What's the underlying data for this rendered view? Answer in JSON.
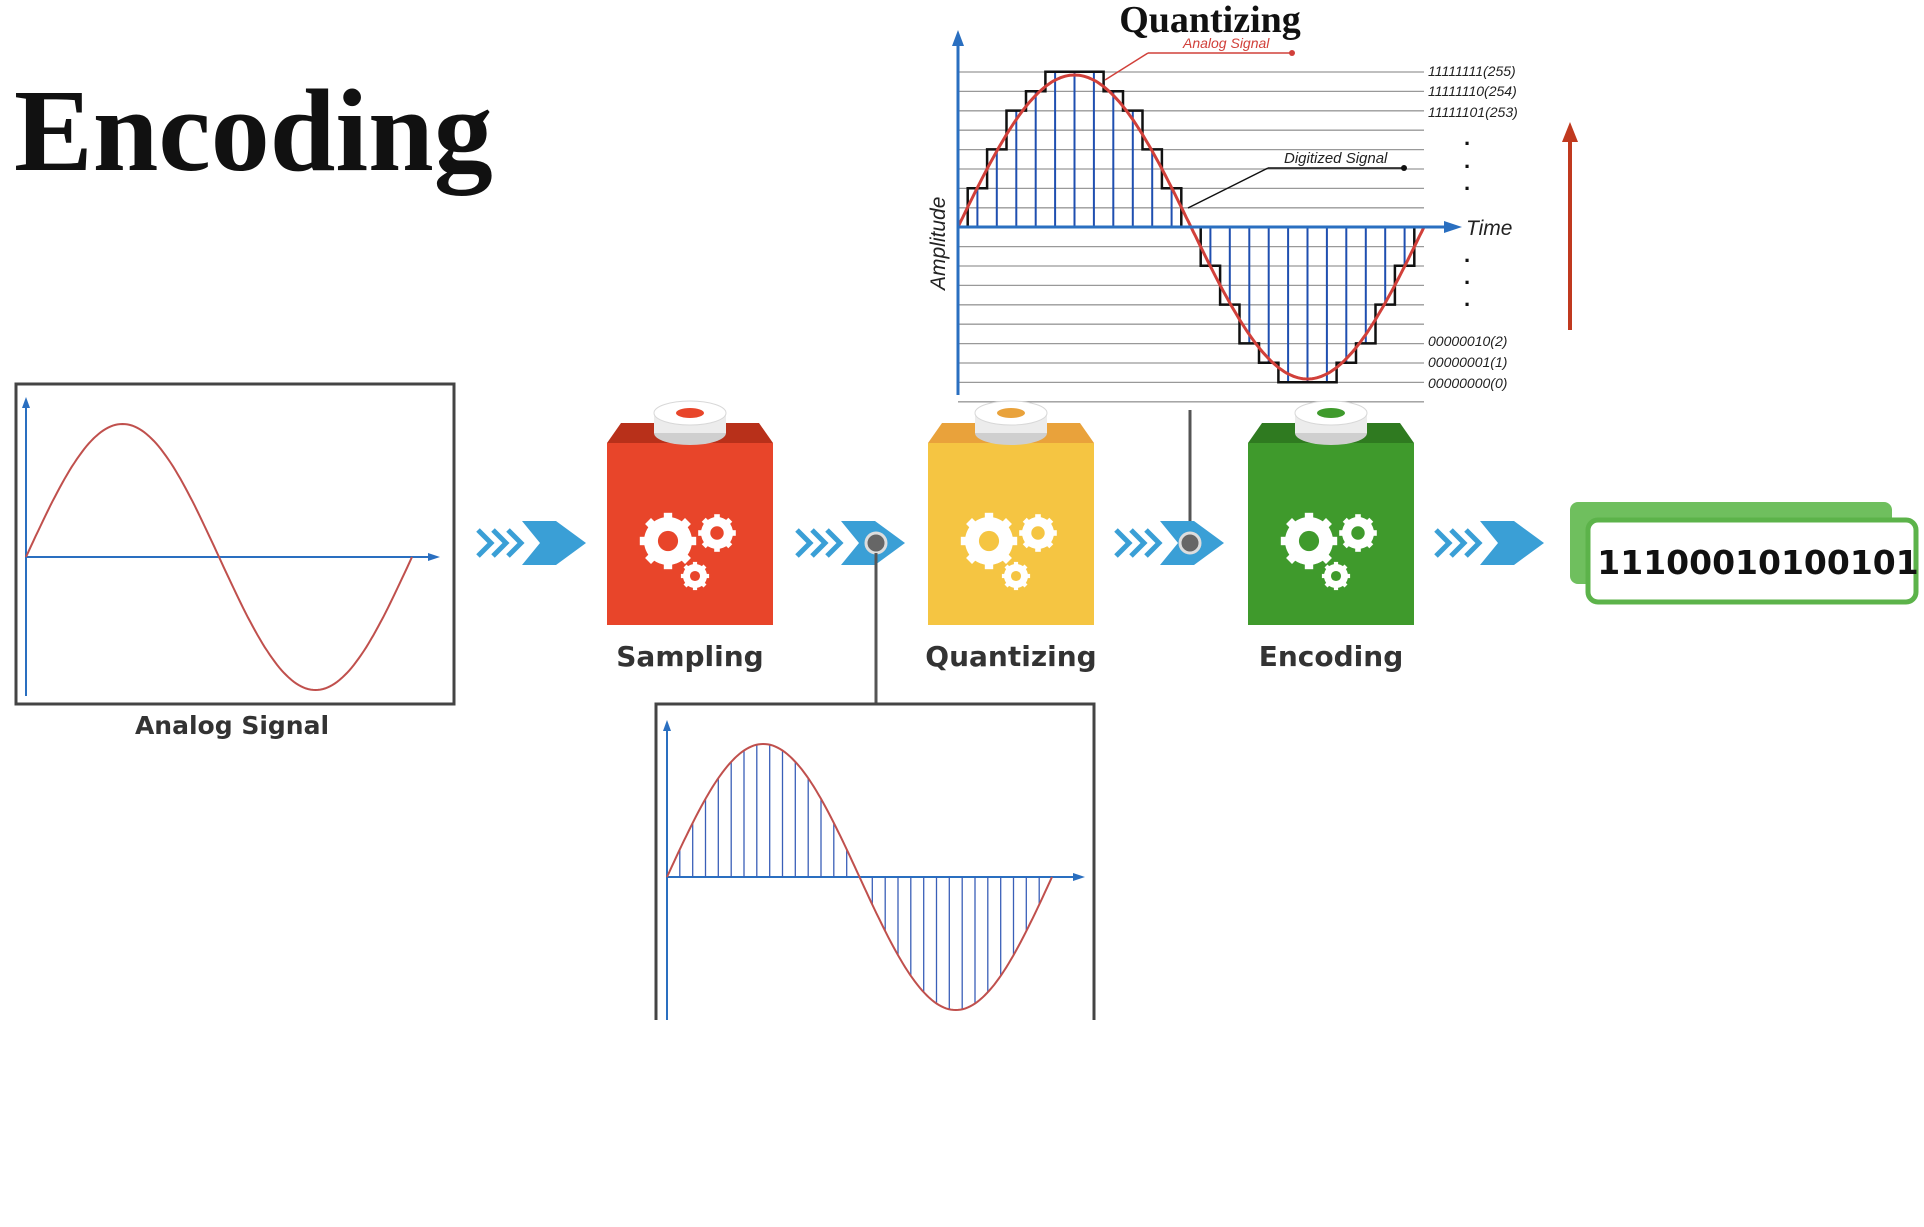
{
  "page_title": "Encoding",
  "quantizing_chart": {
    "title": "Quantizing",
    "analog_signal_label": "Analog Signal",
    "digitized_signal_label": "Digitized Signal",
    "y_axis_label": "Amplitude",
    "x_axis_label": "Time",
    "levels_top": [
      "11111111(255)",
      "11111110(254)",
      "11111101(253)"
    ],
    "levels_bottom": [
      "00000010(2)",
      "00000001(1)",
      "00000000(0)"
    ],
    "ellipsis": "."
  },
  "analog_panel": {
    "label": "Analog Signal"
  },
  "pipeline": {
    "stages": [
      {
        "label": "Sampling",
        "color": "#e8452a",
        "dark": "#b8301a",
        "ring": "#e8452a"
      },
      {
        "label": "Quantizing",
        "color": "#f5c542",
        "dark": "#e9a23b",
        "ring": "#e9a23b"
      },
      {
        "label": "Encoding",
        "color": "#3f9a2c",
        "dark": "#2f7a20",
        "ring": "#3f9a2c"
      }
    ],
    "arrow_color": "#3a9fd6"
  },
  "output": {
    "binary": "11100010100101",
    "border_color": "#5cb34a"
  },
  "colors": {
    "signal": "#d1403a",
    "samples": "#1f4fb0",
    "axis": "#2a6fc0",
    "up_arrow": "#c0391f"
  }
}
